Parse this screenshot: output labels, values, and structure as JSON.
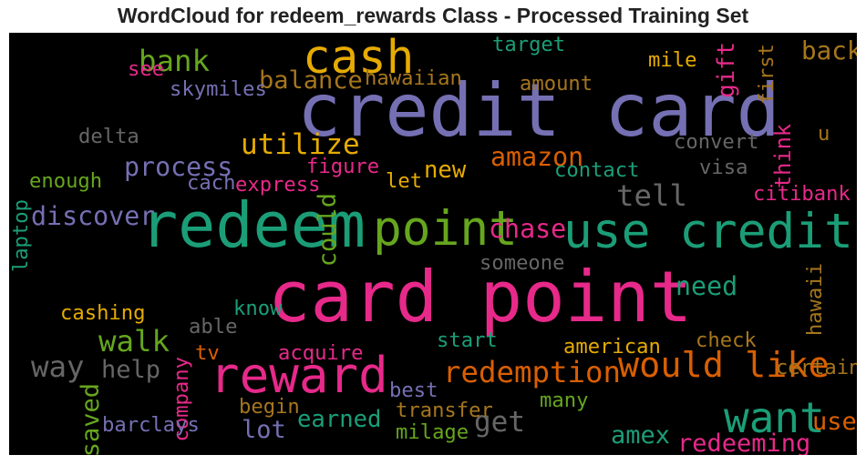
{
  "chart_data": {
    "type": "wordcloud",
    "title": "WordCloud for redeem_rewards Class - Processed Training Set",
    "background": "#000000",
    "words": [
      {
        "text": "credit card",
        "weight": 1.0,
        "color": "#7570b3",
        "orientation": "horizontal"
      },
      {
        "text": "card point",
        "weight": 0.96,
        "color": "#e7298a",
        "orientation": "horizontal"
      },
      {
        "text": "redeem",
        "weight": 0.83,
        "color": "#1b9e77",
        "orientation": "horizontal"
      },
      {
        "text": "reward",
        "weight": 0.62,
        "color": "#e7298a",
        "orientation": "horizontal"
      },
      {
        "text": "point",
        "weight": 0.6,
        "color": "#66a61e",
        "orientation": "horizontal"
      },
      {
        "text": "use credit",
        "weight": 0.6,
        "color": "#1b9e77",
        "orientation": "horizontal"
      },
      {
        "text": "cash",
        "weight": 0.57,
        "color": "#e6ab02",
        "orientation": "horizontal"
      },
      {
        "text": "want",
        "weight": 0.5,
        "color": "#1b9e77",
        "orientation": "horizontal"
      },
      {
        "text": "would like",
        "weight": 0.39,
        "color": "#d95f02",
        "orientation": "horizontal"
      },
      {
        "text": "redemption",
        "weight": 0.3,
        "color": "#d95f02",
        "orientation": "horizontal"
      },
      {
        "text": "walk",
        "weight": 0.3,
        "color": "#66a61e",
        "orientation": "horizontal"
      },
      {
        "text": "way",
        "weight": 0.3,
        "color": "#666666",
        "orientation": "horizontal"
      },
      {
        "text": "tell",
        "weight": 0.3,
        "color": "#666666",
        "orientation": "horizontal"
      },
      {
        "text": "bank",
        "weight": 0.3,
        "color": "#66a61e",
        "orientation": "horizontal"
      },
      {
        "text": "utilize",
        "weight": 0.28,
        "color": "#e6ab02",
        "orientation": "horizontal"
      },
      {
        "text": "get",
        "weight": 0.28,
        "color": "#666666",
        "orientation": "horizontal"
      },
      {
        "text": "process",
        "weight": 0.24,
        "color": "#7570b3",
        "orientation": "horizontal"
      },
      {
        "text": "discover",
        "weight": 0.24,
        "color": "#7570b3",
        "orientation": "horizontal"
      },
      {
        "text": "amazon",
        "weight": 0.24,
        "color": "#d95f02",
        "orientation": "horizontal"
      },
      {
        "text": "chase",
        "weight": 0.24,
        "color": "#e7298a",
        "orientation": "horizontal"
      },
      {
        "text": "need",
        "weight": 0.24,
        "color": "#1b9e77",
        "orientation": "horizontal"
      },
      {
        "text": "back",
        "weight": 0.23,
        "color": "#a6761d",
        "orientation": "horizontal"
      },
      {
        "text": "could",
        "weight": 0.22,
        "color": "#66a61e",
        "orientation": "vertical"
      },
      {
        "text": "balance",
        "weight": 0.22,
        "color": "#a6761d",
        "orientation": "horizontal"
      },
      {
        "text": "help",
        "weight": 0.22,
        "color": "#666666",
        "orientation": "horizontal"
      },
      {
        "text": "lot",
        "weight": 0.22,
        "color": "#7570b3",
        "orientation": "horizontal"
      },
      {
        "text": "amex",
        "weight": 0.22,
        "color": "#1b9e77",
        "orientation": "horizontal"
      },
      {
        "text": "redeeming",
        "weight": 0.22,
        "color": "#e7298a",
        "orientation": "horizontal"
      },
      {
        "text": "use",
        "weight": 0.22,
        "color": "#d95f02",
        "orientation": "horizontal"
      },
      {
        "text": "saved",
        "weight": 0.22,
        "color": "#66a61e",
        "orientation": "vertical"
      },
      {
        "text": "new",
        "weight": 0.2,
        "color": "#e6ab02",
        "orientation": "horizontal"
      },
      {
        "text": "earned",
        "weight": 0.2,
        "color": "#1b9e77",
        "orientation": "horizontal"
      },
      {
        "text": "gift",
        "weight": 0.2,
        "color": "#e7298a",
        "orientation": "vertical"
      },
      {
        "text": "think",
        "weight": 0.17,
        "color": "#e7298a",
        "orientation": "vertical"
      },
      {
        "text": "target",
        "weight": 0.15,
        "color": "#1b9e77",
        "orientation": "horizontal"
      },
      {
        "text": "mile",
        "weight": 0.15,
        "color": "#e6ab02",
        "orientation": "horizontal"
      },
      {
        "text": "first",
        "weight": 0.15,
        "color": "#a6761d",
        "orientation": "vertical"
      },
      {
        "text": "see",
        "weight": 0.15,
        "color": "#e7298a",
        "orientation": "horizontal"
      },
      {
        "text": "skymiles",
        "weight": 0.15,
        "color": "#7570b3",
        "orientation": "horizontal"
      },
      {
        "text": "hawaiian",
        "weight": 0.15,
        "color": "#a6761d",
        "orientation": "horizontal"
      },
      {
        "text": "amount",
        "weight": 0.15,
        "color": "#a6761d",
        "orientation": "horizontal"
      },
      {
        "text": "delta",
        "weight": 0.15,
        "color": "#666666",
        "orientation": "horizontal"
      },
      {
        "text": "convert",
        "weight": 0.15,
        "color": "#666666",
        "orientation": "horizontal"
      },
      {
        "text": "u",
        "weight": 0.15,
        "color": "#a6761d",
        "orientation": "horizontal"
      },
      {
        "text": "figure",
        "weight": 0.15,
        "color": "#e7298a",
        "orientation": "horizontal"
      },
      {
        "text": "contact",
        "weight": 0.15,
        "color": "#1b9e77",
        "orientation": "horizontal"
      },
      {
        "text": "visa",
        "weight": 0.15,
        "color": "#666666",
        "orientation": "horizontal"
      },
      {
        "text": "enough",
        "weight": 0.15,
        "color": "#66a61e",
        "orientation": "horizontal"
      },
      {
        "text": "cach",
        "weight": 0.15,
        "color": "#7570b3",
        "orientation": "horizontal"
      },
      {
        "text": "express",
        "weight": 0.15,
        "color": "#e7298a",
        "orientation": "horizontal"
      },
      {
        "text": "let",
        "weight": 0.15,
        "color": "#e6ab02",
        "orientation": "horizontal"
      },
      {
        "text": "citibank",
        "weight": 0.15,
        "color": "#e7298a",
        "orientation": "horizontal"
      },
      {
        "text": "laptop",
        "weight": 0.15,
        "color": "#1b9e77",
        "orientation": "vertical"
      },
      {
        "text": "someone",
        "weight": 0.15,
        "color": "#666666",
        "orientation": "horizontal"
      },
      {
        "text": "hawaii",
        "weight": 0.15,
        "color": "#a6761d",
        "orientation": "vertical"
      },
      {
        "text": "cashing",
        "weight": 0.15,
        "color": "#e6ab02",
        "orientation": "horizontal"
      },
      {
        "text": "know",
        "weight": 0.15,
        "color": "#1b9e77",
        "orientation": "horizontal"
      },
      {
        "text": "able",
        "weight": 0.15,
        "color": "#666666",
        "orientation": "horizontal"
      },
      {
        "text": "start",
        "weight": 0.15,
        "color": "#1b9e77",
        "orientation": "horizontal"
      },
      {
        "text": "check",
        "weight": 0.15,
        "color": "#a6761d",
        "orientation": "horizontal"
      },
      {
        "text": "tv",
        "weight": 0.15,
        "color": "#d95f02",
        "orientation": "horizontal"
      },
      {
        "text": "acquire",
        "weight": 0.15,
        "color": "#e7298a",
        "orientation": "horizontal"
      },
      {
        "text": "american",
        "weight": 0.15,
        "color": "#e6ab02",
        "orientation": "horizontal"
      },
      {
        "text": "certain",
        "weight": 0.15,
        "color": "#a6761d",
        "orientation": "horizontal"
      },
      {
        "text": "company",
        "weight": 0.15,
        "color": "#e7298a",
        "orientation": "vertical"
      },
      {
        "text": "best",
        "weight": 0.15,
        "color": "#7570b3",
        "orientation": "horizontal"
      },
      {
        "text": "begin",
        "weight": 0.15,
        "color": "#a6761d",
        "orientation": "horizontal"
      },
      {
        "text": "transfer",
        "weight": 0.15,
        "color": "#a6761d",
        "orientation": "horizontal"
      },
      {
        "text": "many",
        "weight": 0.15,
        "color": "#66a61e",
        "orientation": "horizontal"
      },
      {
        "text": "barclays",
        "weight": 0.15,
        "color": "#7570b3",
        "orientation": "horizontal"
      },
      {
        "text": "milage",
        "weight": 0.15,
        "color": "#66a61e",
        "orientation": "horizontal"
      }
    ]
  }
}
